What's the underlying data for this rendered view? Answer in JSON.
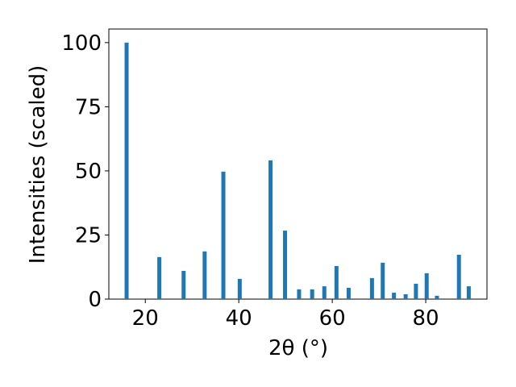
{
  "chart_data": {
    "type": "bar",
    "x_label": "2θ (°)",
    "y_label": "Intensities (scaled)",
    "x": [
      16.0,
      23.0,
      28.2,
      32.7,
      36.7,
      40.2,
      46.8,
      49.9,
      52.9,
      55.7,
      58.3,
      60.9,
      63.5,
      68.5,
      70.8,
      73.2,
      75.7,
      77.9,
      80.2,
      82.4,
      87.1,
      89.2
    ],
    "values": [
      100,
      16.4,
      11.0,
      18.6,
      49.7,
      7.9,
      54.1,
      26.7,
      3.8,
      3.8,
      5.0,
      12.9,
      4.4,
      8.2,
      14.2,
      2.5,
      1.9,
      6.0,
      10.1,
      1.3,
      17.3,
      5.0
    ],
    "color": "#1f77b4",
    "xlim": [
      12.2,
      93.1
    ],
    "xticks": [
      20,
      40,
      60,
      80
    ],
    "ylim": [
      0,
      105.3
    ],
    "yticks": [
      0,
      25,
      50,
      75,
      100
    ]
  }
}
